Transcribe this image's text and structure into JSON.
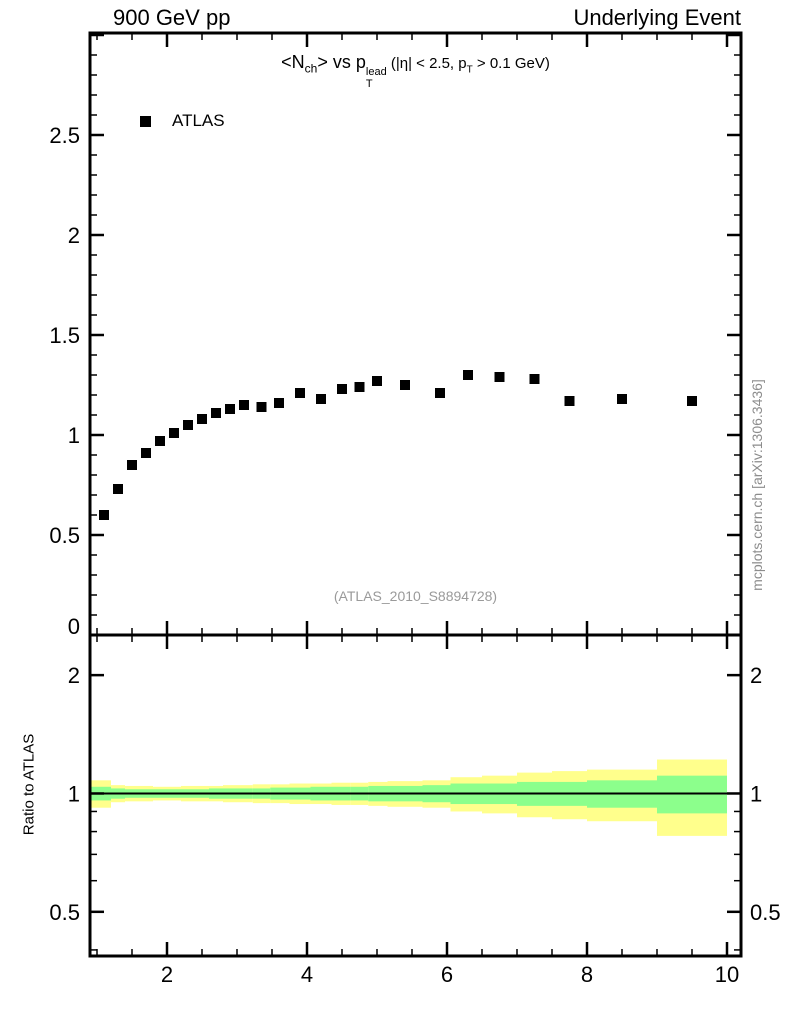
{
  "header": {
    "left": "900 GeV pp",
    "right": "Underlying Event"
  },
  "title_parts": {
    "t1": "<N",
    "t1sub": "ch",
    "t2": "> vs p",
    "t2sup": "lead",
    "t2sub": "T",
    "t3": " (|η| < 2.5, p",
    "t3sub": "T",
    "t4": " > 0.1 GeV)"
  },
  "watermark": "(ATLAS_2010_S8894728)",
  "side_label": "mcplots.cern.ch [arXiv:1306.3436]",
  "chart_data": [
    {
      "type": "scatter",
      "panel": "main",
      "title": "<N_ch> vs p_T^lead (|eta| < 2.5, p_T > 0.1 GeV)",
      "xlim": [
        0.9,
        10.2
      ],
      "ylim": [
        0,
        3.01
      ],
      "xticks": [
        {
          "v": 2,
          "l": "2"
        },
        {
          "v": 4,
          "l": "4"
        },
        {
          "v": 6,
          "l": "6"
        },
        {
          "v": 8,
          "l": "8"
        },
        {
          "v": 10,
          "l": "10"
        }
      ],
      "yticks": [
        {
          "v": 0,
          "l": "0"
        },
        {
          "v": 0.5,
          "l": "0.5"
        },
        {
          "v": 1,
          "l": "1"
        },
        {
          "v": 1.5,
          "l": "1.5"
        },
        {
          "v": 2,
          "l": "2"
        },
        {
          "v": 2.5,
          "l": "2.5"
        },
        {
          "v": 3,
          "l": ""
        }
      ],
      "minor_x_step": 0.5,
      "minor_y_step": 0.1,
      "series": [
        {
          "name": "ATLAS",
          "marker": "filled-square",
          "color": "#000000",
          "x": [
            1.1,
            1.3,
            1.5,
            1.7,
            1.9,
            2.1,
            2.3,
            2.5,
            2.7,
            2.9,
            3.1,
            3.35,
            3.6,
            3.9,
            4.2,
            4.5,
            4.75,
            5.0,
            5.4,
            5.9,
            6.3,
            6.75,
            7.25,
            7.75,
            8.5,
            9.5
          ],
          "y": [
            0.6,
            0.73,
            0.85,
            0.91,
            0.97,
            1.01,
            1.05,
            1.08,
            1.11,
            1.13,
            1.15,
            1.14,
            1.16,
            1.21,
            1.18,
            1.23,
            1.24,
            1.27,
            1.25,
            1.21,
            1.3,
            1.29,
            1.28,
            1.17,
            1.18,
            1.17
          ]
        }
      ]
    },
    {
      "type": "band",
      "panel": "ratio",
      "ylabel": "Ratio to ATLAS",
      "yscale": "log",
      "ylim": [
        0.386,
        2.53
      ],
      "yticks": [
        {
          "v": 0.5,
          "l": "0.5"
        },
        {
          "v": 1,
          "l": "1"
        },
        {
          "v": 2,
          "l": "2"
        }
      ],
      "minor_yticks": [
        0.4,
        0.6,
        0.7,
        0.8,
        0.9
      ],
      "reference_line": 1.0,
      "band_colors": {
        "outer": "#ffff8c",
        "inner": "#8cff8c"
      },
      "x_edges": [
        0.9,
        1.2,
        1.4,
        1.6,
        1.8,
        2.0,
        2.2,
        2.4,
        2.6,
        2.8,
        3.0,
        3.225,
        3.475,
        3.75,
        4.05,
        4.35,
        4.625,
        4.875,
        5.15,
        5.65,
        6.05,
        6.5,
        7.0,
        7.5,
        8.0,
        9.0,
        10.0
      ],
      "outer_halfwidth": [
        0.08,
        0.05,
        0.045,
        0.045,
        0.04,
        0.04,
        0.045,
        0.045,
        0.045,
        0.05,
        0.05,
        0.055,
        0.055,
        0.06,
        0.06,
        0.065,
        0.065,
        0.07,
        0.075,
        0.08,
        0.1,
        0.11,
        0.13,
        0.14,
        0.15,
        0.22
      ],
      "inner_halfwidth": [
        0.04,
        0.03,
        0.025,
        0.025,
        0.025,
        0.025,
        0.025,
        0.025,
        0.03,
        0.03,
        0.03,
        0.03,
        0.035,
        0.035,
        0.04,
        0.04,
        0.04,
        0.045,
        0.045,
        0.05,
        0.06,
        0.06,
        0.07,
        0.07,
        0.08,
        0.11
      ]
    }
  ]
}
